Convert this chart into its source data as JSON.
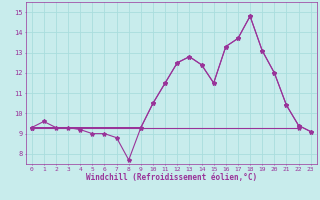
{
  "title": "",
  "xlabel": "Windchill (Refroidissement éolien,°C)",
  "ylabel": "",
  "xlim": [
    -0.5,
    23.5
  ],
  "ylim": [
    7.5,
    15.5
  ],
  "yticks": [
    8,
    9,
    10,
    11,
    12,
    13,
    14,
    15
  ],
  "xticks": [
    0,
    1,
    2,
    3,
    4,
    5,
    6,
    7,
    8,
    9,
    10,
    11,
    12,
    13,
    14,
    15,
    16,
    17,
    18,
    19,
    20,
    21,
    22,
    23
  ],
  "bg_color": "#c8ecec",
  "grid_color": "#aadddd",
  "line_color": "#993399",
  "line1_x": [
    0,
    1,
    2,
    3,
    4,
    5,
    6,
    7,
    8,
    9,
    10,
    11,
    12,
    13,
    14,
    15,
    16,
    17,
    18,
    19,
    20,
    21,
    22,
    23
  ],
  "line1_y": [
    9.3,
    9.6,
    9.3,
    9.3,
    9.2,
    9.0,
    9.0,
    8.8,
    7.7,
    9.3,
    10.5,
    11.5,
    12.5,
    12.8,
    12.4,
    11.5,
    13.3,
    13.7,
    14.8,
    13.1,
    12.0,
    10.4,
    9.4,
    9.1
  ],
  "line2_x": [
    0,
    9,
    10,
    11,
    12,
    13,
    14,
    15,
    16,
    17,
    18,
    19,
    20,
    21,
    22,
    23
  ],
  "line2_y": [
    9.3,
    9.3,
    10.5,
    11.5,
    12.5,
    12.8,
    12.4,
    11.5,
    13.3,
    13.7,
    14.8,
    13.1,
    12.0,
    10.4,
    9.4,
    9.1
  ],
  "line3_x": [
    0,
    22
  ],
  "line3_y": [
    9.3,
    9.3
  ],
  "marker": "*",
  "markersize": 3,
  "linewidth": 0.8
}
